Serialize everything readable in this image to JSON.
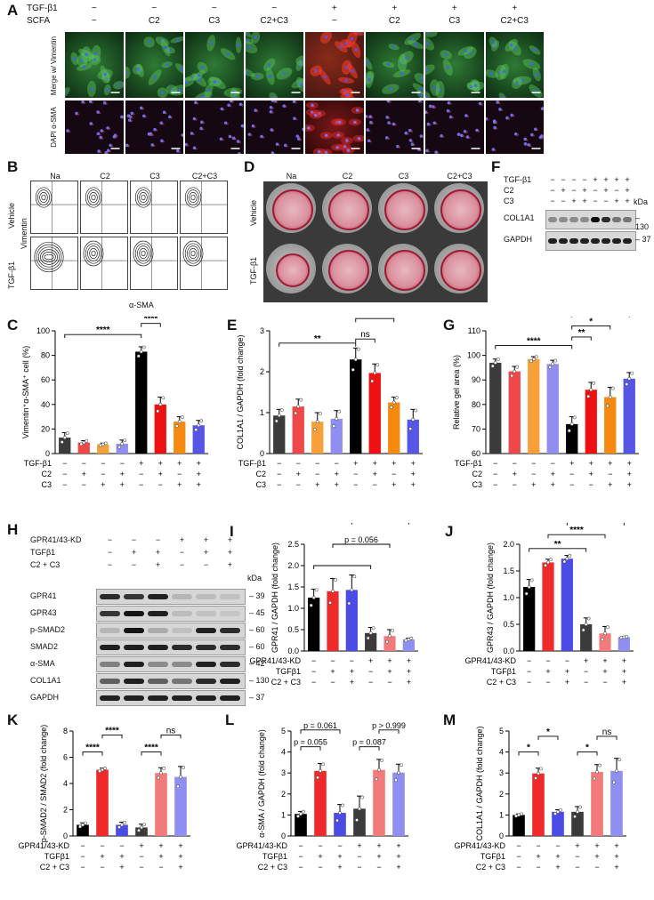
{
  "panels": {
    "A": {
      "label": "A",
      "row_labels": [
        "TGF-β1",
        "SCFA"
      ],
      "tgf": [
        "−",
        "−",
        "−",
        "−",
        "+",
        "+",
        "+",
        "+"
      ],
      "scfa": [
        "−",
        "C2",
        "C3",
        "C2+C3",
        "−",
        "C2",
        "C3",
        "C2+C3"
      ],
      "side_top": "Merge w/ Vimentin",
      "side_bottom": "DAPI α-SMA"
    },
    "B": {
      "label": "B",
      "columns": [
        "Na",
        "C2",
        "C3",
        "C2+C3"
      ],
      "rows": [
        "Vehicle",
        "TGF-β1"
      ],
      "ylabel": "Vimentin",
      "xlabel": "α-SMA"
    },
    "D": {
      "label": "D",
      "columns": [
        "Na",
        "C2",
        "C3",
        "C2+C3"
      ],
      "rows": [
        "Vehicle",
        "TGF-β1"
      ]
    },
    "F": {
      "label": "F",
      "row_labels": [
        "TGF-β1",
        "C2",
        "C3"
      ],
      "tgf": [
        "−",
        "−",
        "−",
        "−",
        "+",
        "+",
        "+",
        "+"
      ],
      "c2": [
        "−",
        "+",
        "−",
        "+",
        "−",
        "+",
        "−",
        "+"
      ],
      "c3": [
        "−",
        "−",
        "+",
        "+",
        "−",
        "−",
        "+",
        "+"
      ],
      "kda_label": "kDa",
      "bands": [
        {
          "name": "COL1A1",
          "kda": "130"
        },
        {
          "name": "GAPDH",
          "kda": "37"
        }
      ]
    },
    "H": {
      "label": "H",
      "row_labels": [
        "GPR41/43-KD",
        "TGFβ1",
        "C2 + C3"
      ],
      "kd": [
        "−",
        "−",
        "−",
        "+",
        "+",
        "+"
      ],
      "tgf": [
        "−",
        "+",
        "+",
        "−",
        "+",
        "+"
      ],
      "scfa": [
        "−",
        "−",
        "+",
        "−",
        "−",
        "+"
      ],
      "kda_label": "kDa",
      "bands": [
        {
          "name": "GPR41",
          "kda": "39"
        },
        {
          "name": "GPR43",
          "kda": "45"
        },
        {
          "name": "p-SMAD2",
          "kda": "60"
        },
        {
          "name": "SMAD2",
          "kda": "60"
        },
        {
          "name": "α-SMA",
          "kda": "42"
        },
        {
          "name": "COL1A1",
          "kda": "130"
        },
        {
          "name": "GAPDH",
          "kda": "37"
        }
      ]
    }
  },
  "chart_data": [
    {
      "id": "C",
      "label": "C",
      "type": "bar",
      "ylabel": "Vimentin⁺α-SMA⁺ cell (%)",
      "ylim": [
        0,
        100
      ],
      "yticks": [
        0,
        20,
        40,
        60,
        80,
        100
      ],
      "values": [
        13,
        9,
        7.5,
        8,
        83,
        40,
        26,
        23
      ],
      "errors": [
        4,
        1.5,
        1,
        3,
        4,
        6,
        4,
        4
      ],
      "colors": [
        "#3b3b3b",
        "#f04848",
        "#f7a03a",
        "#8f8ff2",
        "#000000",
        "#ee1111",
        "#f68a10",
        "#5555e6"
      ],
      "cond_labels": [
        "TGF-β1",
        "C2",
        "C3"
      ],
      "conds": [
        [
          "−",
          "−",
          "−",
          "−",
          "+",
          "+",
          "+",
          "+"
        ],
        [
          "−",
          "+",
          "−",
          "+",
          "−",
          "+",
          "−",
          "+"
        ],
        [
          "−",
          "−",
          "+",
          "+",
          "−",
          "−",
          "+",
          "+"
        ]
      ],
      "annotations": [
        {
          "from": 0,
          "to": 4,
          "y": 97,
          "text": "****"
        },
        {
          "from": 4,
          "to": 5,
          "y": 106,
          "text": "****"
        },
        {
          "from": 4,
          "to": 6,
          "y": 118,
          "text": "****"
        },
        {
          "from": 4,
          "to": 7,
          "y": 131,
          "text": "****"
        }
      ]
    },
    {
      "id": "E",
      "label": "E",
      "type": "bar",
      "ylabel": "COL1A1 / GAPDH (fold change)",
      "ylim": [
        0,
        3
      ],
      "yticks": [
        0,
        1,
        2,
        3
      ],
      "values": [
        0.93,
        1.15,
        0.78,
        0.85,
        2.3,
        1.97,
        1.25,
        0.83
      ],
      "errors": [
        0.15,
        0.18,
        0.22,
        0.2,
        0.28,
        0.22,
        0.13,
        0.25
      ],
      "colors": [
        "#3b3b3b",
        "#f04848",
        "#f7a03a",
        "#8f8ff2",
        "#000000",
        "#ee1111",
        "#f68a10",
        "#5555e6"
      ],
      "cond_labels": [
        "TGF-β1",
        "C2",
        "C3"
      ],
      "conds": [
        [
          "−",
          "−",
          "−",
          "−",
          "+",
          "+",
          "+",
          "+"
        ],
        [
          "−",
          "+",
          "−",
          "+",
          "−",
          "+",
          "−",
          "+"
        ],
        [
          "−",
          "−",
          "+",
          "+",
          "−",
          "−",
          "+",
          "+"
        ]
      ],
      "annotations": [
        {
          "from": 0,
          "to": 4,
          "y": 2.7,
          "text": "**"
        },
        {
          "from": 4,
          "to": 5,
          "y": 2.8,
          "text": "ns"
        },
        {
          "from": 4,
          "to": 6,
          "y": 3.3,
          "text": "*"
        },
        {
          "from": 4,
          "to": 7,
          "y": 3.8,
          "text": "**"
        }
      ]
    },
    {
      "id": "G",
      "label": "G",
      "type": "bar",
      "ylabel": "Relative gel area (%)",
      "ylim": [
        60,
        110
      ],
      "yticks": [
        60,
        70,
        80,
        90,
        100,
        110
      ],
      "values": [
        97,
        93.5,
        98.5,
        96.5,
        72,
        86,
        83,
        90.5
      ],
      "errors": [
        1.5,
        2,
        1,
        1.5,
        3,
        3,
        4,
        2.5
      ],
      "colors": [
        "#3b3b3b",
        "#f04848",
        "#f7a03a",
        "#8f8ff2",
        "#000000",
        "#ee1111",
        "#f68a10",
        "#5555e6"
      ],
      "cond_labels": [
        "TGF-β1",
        "C2",
        "C3"
      ],
      "conds": [
        [
          "−",
          "−",
          "−",
          "−",
          "+",
          "+",
          "+",
          "+"
        ],
        [
          "−",
          "+",
          "−",
          "+",
          "−",
          "+",
          "−",
          "+"
        ],
        [
          "−",
          "−",
          "+",
          "+",
          "−",
          "−",
          "+",
          "+"
        ]
      ],
      "annotations": [
        {
          "from": 0,
          "to": 4,
          "y": 104,
          "text": "****"
        },
        {
          "from": 4,
          "to": 5,
          "y": 107.5,
          "text": "**"
        },
        {
          "from": 4,
          "to": 6,
          "y": 112,
          "text": "*"
        },
        {
          "from": 4,
          "to": 7,
          "y": 117,
          "text": "***"
        }
      ]
    },
    {
      "id": "I",
      "label": "I",
      "type": "bar",
      "ylabel": "GPR41 / GAPDH (fold change)",
      "ylim": [
        0,
        2.5
      ],
      "yticks": [
        0.0,
        0.5,
        1.0,
        1.5,
        2.0,
        2.5
      ],
      "values": [
        1.25,
        1.4,
        1.43,
        0.42,
        0.35,
        0.27
      ],
      "errors": [
        0.2,
        0.3,
        0.35,
        0.13,
        0.15,
        0.03
      ],
      "colors": [
        "#000000",
        "#ee2a2a",
        "#4b4be6",
        "#3b3b3b",
        "#f27a7a",
        "#8f8ff2"
      ],
      "cond_labels": [
        "GPR41/43-KD",
        "TGFβ1",
        "C2 + C3"
      ],
      "conds": [
        [
          "−",
          "−",
          "−",
          "+",
          "+",
          "+"
        ],
        [
          "−",
          "+",
          "+",
          "−",
          "+",
          "+"
        ],
        [
          "−",
          "−",
          "+",
          "−",
          "−",
          "+"
        ]
      ],
      "annotations": [
        {
          "from": 0,
          "to": 3,
          "y": 2.0,
          "text": ""
        },
        {
          "from": 1,
          "to": 4,
          "y": 2.5,
          "text": "p = 0.056"
        },
        {
          "from": 2,
          "to": 5,
          "y": 3.05,
          "text": "*"
        }
      ]
    },
    {
      "id": "J",
      "label": "J",
      "type": "bar",
      "ylabel": "GPR43 / GAPDH (fold change)",
      "ylim": [
        0,
        2.0
      ],
      "yticks": [
        0.0,
        0.5,
        1.0,
        1.5,
        2.0
      ],
      "values": [
        1.2,
        1.66,
        1.73,
        0.5,
        0.33,
        0.26
      ],
      "errors": [
        0.14,
        0.06,
        0.06,
        0.12,
        0.13,
        0.01
      ],
      "colors": [
        "#000000",
        "#ee2a2a",
        "#4b4be6",
        "#3b3b3b",
        "#f27a7a",
        "#8f8ff2"
      ],
      "cond_labels": [
        "GPR41/43-KD",
        "TGFβ1",
        "C2 + C3"
      ],
      "conds": [
        [
          "−",
          "−",
          "−",
          "+",
          "+",
          "+"
        ],
        [
          "−",
          "+",
          "+",
          "−",
          "+",
          "+"
        ],
        [
          "−",
          "−",
          "+",
          "−",
          "−",
          "+"
        ]
      ],
      "annotations": [
        {
          "from": 0,
          "to": 3,
          "y": 1.92,
          "text": "**"
        },
        {
          "from": 1,
          "to": 4,
          "y": 2.18,
          "text": "****"
        },
        {
          "from": 2,
          "to": 5,
          "y": 2.42,
          "text": "****"
        }
      ]
    },
    {
      "id": "K",
      "label": "K",
      "type": "bar",
      "ylabel": "p-SMAD2 / SMAD2 (fold change)",
      "ylim": [
        0,
        8
      ],
      "yticks": [
        0,
        2,
        4,
        6,
        8
      ],
      "values": [
        0.85,
        5.05,
        0.85,
        0.65,
        4.8,
        4.5
      ],
      "errors": [
        0.15,
        0.12,
        0.2,
        0.25,
        0.4,
        0.8
      ],
      "colors": [
        "#000000",
        "#ee2a2a",
        "#4b4be6",
        "#3b3b3b",
        "#f27a7a",
        "#8f8ff2"
      ],
      "cond_labels": [
        "GPR41/43-KD",
        "TGFβ1",
        "C2 + C3"
      ],
      "conds": [
        [
          "−",
          "−",
          "−",
          "+",
          "+",
          "+"
        ],
        [
          "−",
          "+",
          "+",
          "−",
          "+",
          "+"
        ],
        [
          "−",
          "−",
          "+",
          "−",
          "−",
          "+"
        ]
      ],
      "annotations": [
        {
          "from": 0,
          "to": 1,
          "y": 6.4,
          "text": "****"
        },
        {
          "from": 1,
          "to": 2,
          "y": 7.7,
          "text": "****"
        },
        {
          "from": 3,
          "to": 4,
          "y": 6.4,
          "text": "****"
        },
        {
          "from": 4,
          "to": 5,
          "y": 7.7,
          "text": "ns"
        }
      ]
    },
    {
      "id": "L",
      "label": "L",
      "type": "bar",
      "ylabel": "α-SMA / GAPDH (fold change)",
      "ylim": [
        0,
        5
      ],
      "yticks": [
        0,
        1,
        2,
        3,
        4,
        5
      ],
      "values": [
        1.05,
        3.1,
        1.1,
        1.3,
        3.15,
        3.02
      ],
      "errors": [
        0.12,
        0.35,
        0.4,
        0.6,
        0.5,
        0.4
      ],
      "colors": [
        "#000000",
        "#ee2a2a",
        "#4b4be6",
        "#3b3b3b",
        "#f27a7a",
        "#8f8ff2"
      ],
      "cond_labels": [
        "GPR41/43-KD",
        "TGFβ1",
        "C2 + C3"
      ],
      "conds": [
        [
          "−",
          "−",
          "−",
          "+",
          "+",
          "+"
        ],
        [
          "−",
          "+",
          "+",
          "−",
          "+",
          "+"
        ],
        [
          "−",
          "−",
          "+",
          "−",
          "−",
          "+"
        ]
      ],
      "annotations": [
        {
          "from": 0,
          "to": 1,
          "y": 4.25,
          "text": "p = 0.055"
        },
        {
          "from": 0,
          "to": 2,
          "y": 5.05,
          "text": "p = 0.061"
        },
        {
          "from": 3,
          "to": 4,
          "y": 4.25,
          "text": "p = 0.087"
        },
        {
          "from": 4,
          "to": 5,
          "y": 5.05,
          "text": "p > 0.999"
        }
      ]
    },
    {
      "id": "M",
      "label": "M",
      "type": "bar",
      "ylabel": "COL1A1 / GAPDH (fold change)",
      "ylim": [
        0,
        5
      ],
      "yticks": [
        0,
        1,
        2,
        3,
        4,
        5
      ],
      "values": [
        1.0,
        2.98,
        1.15,
        1.15,
        3.05,
        3.1
      ],
      "errors": [
        0.05,
        0.25,
        0.1,
        0.25,
        0.35,
        0.6
      ],
      "colors": [
        "#000000",
        "#ee2a2a",
        "#4b4be6",
        "#3b3b3b",
        "#f27a7a",
        "#8f8ff2"
      ],
      "cond_labels": [
        "GPR41/43-KD",
        "TGFβ1",
        "C2 + C3"
      ],
      "conds": [
        [
          "−",
          "−",
          "−",
          "+",
          "+",
          "+"
        ],
        [
          "−",
          "+",
          "+",
          "−",
          "+",
          "+"
        ],
        [
          "−",
          "−",
          "+",
          "−",
          "−",
          "+"
        ]
      ],
      "annotations": [
        {
          "from": 0,
          "to": 1,
          "y": 4.0,
          "text": "*"
        },
        {
          "from": 1,
          "to": 2,
          "y": 4.75,
          "text": "*"
        },
        {
          "from": 3,
          "to": 4,
          "y": 4.0,
          "text": "*"
        },
        {
          "from": 4,
          "to": 5,
          "y": 4.75,
          "text": "ns"
        }
      ]
    }
  ]
}
